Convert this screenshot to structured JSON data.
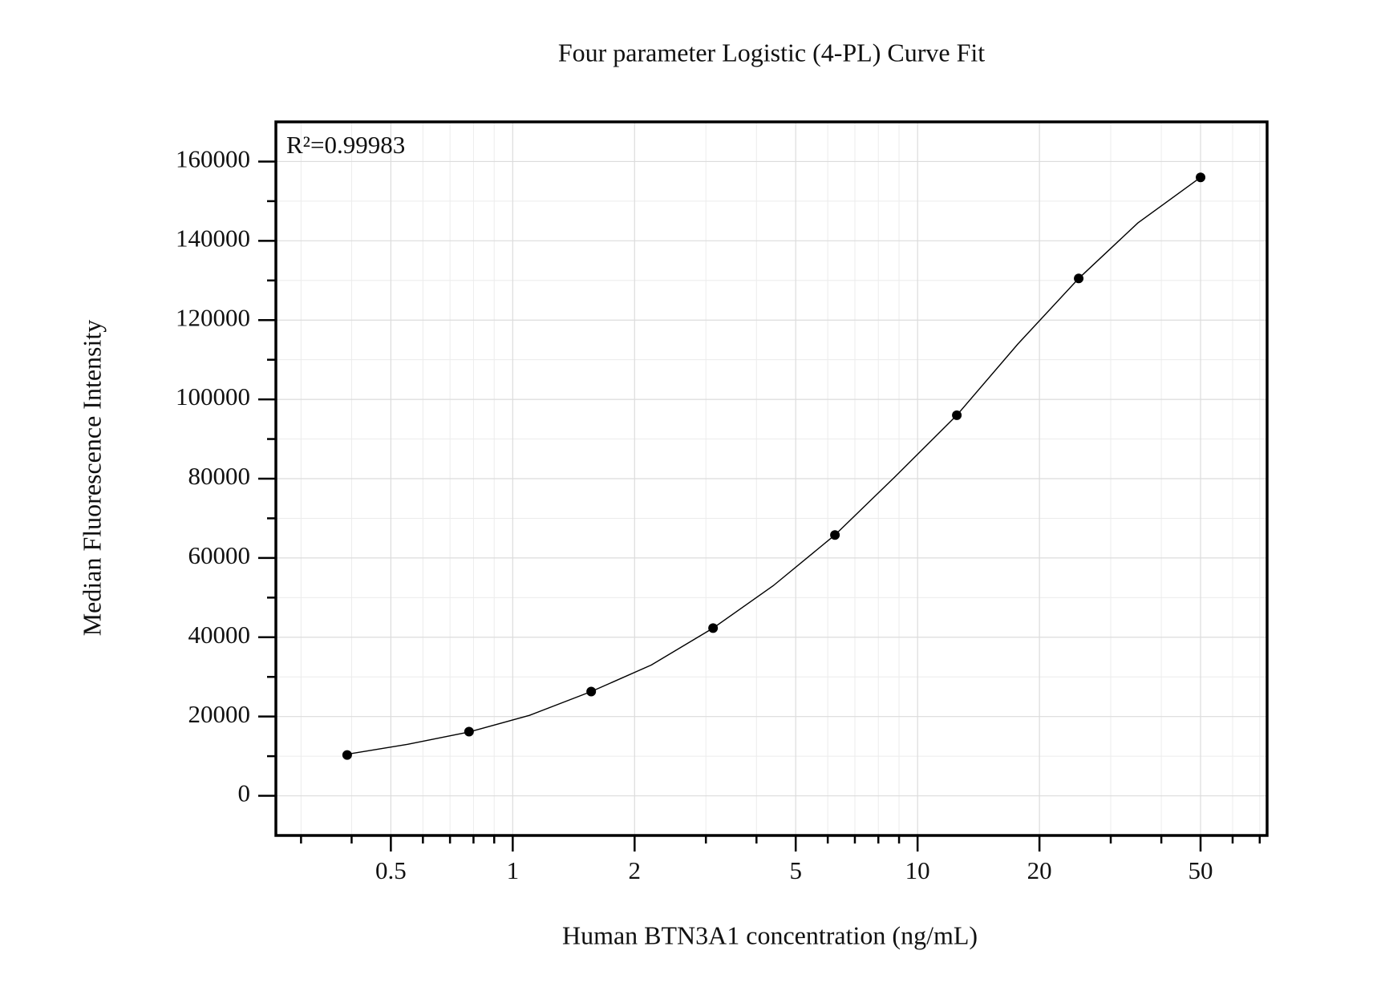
{
  "chart_data": {
    "type": "scatter",
    "title": "Four parameter Logistic (4-PL) Curve Fit",
    "xlabel": "Human BTN3A1 concentration (ng/mL)",
    "ylabel": "Median Fluorescence Intensity",
    "annotation": "R²=0.99983",
    "xscale": "log",
    "grid": true,
    "xlim": [
      0.26,
      73
    ],
    "ylim": [
      -10000,
      170000
    ],
    "xticks": [
      0.5,
      1,
      2,
      5,
      10,
      20,
      50
    ],
    "xminorticks": [
      0.3,
      0.4,
      0.6,
      0.7,
      0.8,
      0.9,
      3,
      4,
      6,
      7,
      8,
      9,
      30,
      40,
      60,
      70
    ],
    "yticks": [
      0,
      20000,
      40000,
      60000,
      80000,
      100000,
      120000,
      140000,
      160000
    ],
    "yminorticks": [
      10000,
      30000,
      50000,
      70000,
      90000,
      110000,
      130000,
      150000
    ],
    "series": [
      {
        "type": "scatter",
        "color": "#000000",
        "x": [
          0.39,
          0.78,
          1.5625,
          3.125,
          6.25,
          12.5,
          25,
          50
        ],
        "values": [
          10300,
          16200,
          26300,
          42300,
          65800,
          96000,
          130500,
          156000
        ]
      },
      {
        "type": "line",
        "color": "#000000",
        "x": [
          0.39,
          0.55,
          0.78,
          1.1,
          1.5625,
          2.2,
          3.125,
          4.4,
          6.25,
          8.8,
          12.5,
          17.7,
          25,
          35,
          50
        ],
        "values": [
          10500,
          13000,
          16100,
          20300,
          26300,
          33000,
          42300,
          53000,
          65800,
          80500,
          96000,
          114000,
          130500,
          144500,
          156000
        ]
      }
    ]
  }
}
